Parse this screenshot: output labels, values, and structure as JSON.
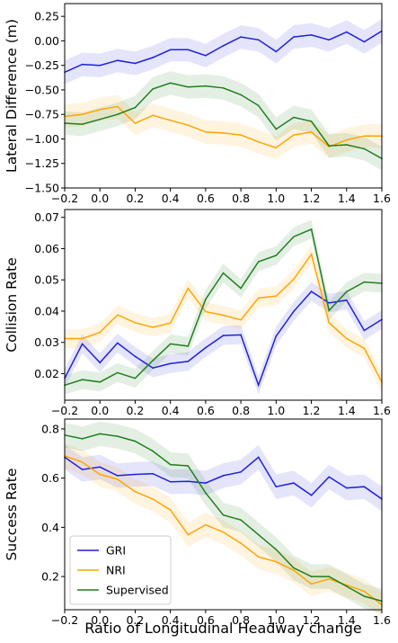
{
  "colors": {
    "GRI": "#1f1fdf",
    "NRI": "#ffa500",
    "Supervised": "#1f7f1f"
  },
  "chart_data": [
    {
      "type": "line",
      "ylabel": "Lateral Difference (m)",
      "xlabel": "",
      "xlim": [
        -0.2,
        1.6
      ],
      "ylim": [
        -1.5,
        0.38
      ],
      "xticks": [
        "−0.2",
        "0.0",
        "0.2",
        "0.4",
        "0.6",
        "0.8",
        "1.0",
        "1.2",
        "1.4",
        "1.6"
      ],
      "yticks": [
        "−1.50",
        "−1.25",
        "−1.00",
        "−0.75",
        "−0.50",
        "−0.25",
        "0.00",
        "0.25"
      ],
      "ytick_values": [
        -1.5,
        -1.25,
        -1.0,
        -0.75,
        -0.5,
        -0.25,
        0.0,
        0.25
      ],
      "x": [
        -0.2,
        -0.1,
        0.0,
        0.1,
        0.2,
        0.3,
        0.4,
        0.5,
        0.6,
        0.7,
        0.8,
        0.9,
        1.0,
        1.1,
        1.2,
        1.3,
        1.4,
        1.5,
        1.6
      ],
      "band": 0.12,
      "series": [
        {
          "name": "GRI",
          "values": [
            -0.32,
            -0.24,
            -0.25,
            -0.2,
            -0.23,
            -0.17,
            -0.09,
            -0.09,
            -0.15,
            -0.05,
            0.04,
            0.01,
            -0.11,
            0.04,
            0.06,
            0.01,
            0.09,
            -0.01,
            0.1
          ]
        },
        {
          "name": "NRI",
          "values": [
            -0.77,
            -0.75,
            -0.7,
            -0.67,
            -0.84,
            -0.76,
            -0.81,
            -0.86,
            -0.93,
            -0.94,
            -0.96,
            -1.03,
            -1.09,
            -0.96,
            -0.93,
            -1.08,
            -1.01,
            -0.97,
            -0.97
          ]
        },
        {
          "name": "Supervised",
          "values": [
            -0.84,
            -0.85,
            -0.8,
            -0.75,
            -0.68,
            -0.49,
            -0.43,
            -0.47,
            -0.46,
            -0.48,
            -0.55,
            -0.66,
            -0.9,
            -0.78,
            -0.82,
            -1.07,
            -1.06,
            -1.1,
            -1.2
          ]
        }
      ]
    },
    {
      "type": "line",
      "ylabel": "Collision Rate",
      "xlabel": "",
      "xlim": [
        -0.2,
        1.6
      ],
      "ylim": [
        0.0115,
        0.0725
      ],
      "xticks": [
        "−0.2",
        "0.0",
        "0.2",
        "0.4",
        "0.6",
        "0.8",
        "1.0",
        "1.2",
        "1.4",
        "1.6"
      ],
      "yticks": [
        "0.02",
        "0.03",
        "0.04",
        "0.05",
        "0.06",
        "0.07"
      ],
      "ytick_values": [
        0.02,
        0.03,
        0.04,
        0.05,
        0.06,
        0.07
      ],
      "x": [
        -0.2,
        -0.1,
        0.0,
        0.1,
        0.2,
        0.3,
        0.4,
        0.5,
        0.6,
        0.7,
        0.8,
        0.9,
        1.0,
        1.1,
        1.2,
        1.3,
        1.4,
        1.5,
        1.6
      ],
      "band": 0.003,
      "series": [
        {
          "name": "GRI",
          "values": [
            0.0185,
            0.0295,
            0.0235,
            0.0298,
            0.0255,
            0.0218,
            0.0232,
            0.0239,
            0.0283,
            0.0322,
            0.0324,
            0.0163,
            0.032,
            0.0399,
            0.0463,
            0.0426,
            0.0435,
            0.0338,
            0.0373
          ]
        },
        {
          "name": "NRI",
          "values": [
            0.0312,
            0.0312,
            0.0332,
            0.0388,
            0.0363,
            0.0348,
            0.0362,
            0.0473,
            0.0398,
            0.0387,
            0.0372,
            0.0442,
            0.0448,
            0.0502,
            0.0582,
            0.0363,
            0.0312,
            0.0281,
            0.0173
          ]
        },
        {
          "name": "Supervised",
          "values": [
            0.0163,
            0.0181,
            0.0173,
            0.0203,
            0.0185,
            0.0242,
            0.0295,
            0.0288,
            0.0438,
            0.0522,
            0.0473,
            0.0558,
            0.0578,
            0.0638,
            0.0662,
            0.0402,
            0.0462,
            0.0493,
            0.0489
          ]
        }
      ]
    },
    {
      "type": "line",
      "ylabel": "Success Rate",
      "xlabel": "Ratio of Longitudinal Headway change",
      "xlim": [
        -0.2,
        1.6
      ],
      "ylim": [
        0.065,
        0.84
      ],
      "xticks": [
        "−0.2",
        "0.0",
        "0.2",
        "0.4",
        "0.6",
        "0.8",
        "1.0",
        "1.2",
        "1.4",
        "1.6"
      ],
      "yticks": [
        "0.2",
        "0.4",
        "0.6",
        "0.8"
      ],
      "ytick_values": [
        0.2,
        0.4,
        0.6,
        0.8
      ],
      "x": [
        -0.2,
        -0.1,
        0.0,
        0.1,
        0.2,
        0.3,
        0.4,
        0.5,
        0.6,
        0.7,
        0.8,
        0.9,
        1.0,
        1.1,
        1.2,
        1.3,
        1.4,
        1.5,
        1.6
      ],
      "band": 0.05,
      "legend": "lower-left",
      "series": [
        {
          "name": "GRI",
          "values": [
            0.685,
            0.635,
            0.645,
            0.61,
            0.615,
            0.618,
            0.585,
            0.587,
            0.58,
            0.61,
            0.625,
            0.685,
            0.565,
            0.58,
            0.53,
            0.605,
            0.56,
            0.565,
            0.515
          ]
        },
        {
          "name": "NRI",
          "values": [
            0.69,
            0.665,
            0.615,
            0.595,
            0.545,
            0.515,
            0.47,
            0.37,
            0.41,
            0.38,
            0.335,
            0.28,
            0.26,
            0.225,
            0.17,
            0.19,
            0.165,
            0.14,
            0.085
          ]
        },
        {
          "name": "Supervised",
          "values": [
            0.775,
            0.76,
            0.78,
            0.77,
            0.75,
            0.71,
            0.655,
            0.65,
            0.54,
            0.45,
            0.43,
            0.37,
            0.31,
            0.235,
            0.2,
            0.2,
            0.16,
            0.12,
            0.1
          ]
        }
      ]
    }
  ]
}
